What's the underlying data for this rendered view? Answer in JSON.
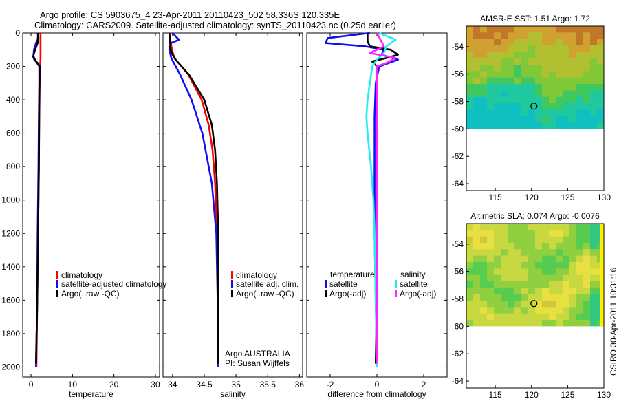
{
  "header": {
    "line1": "Argo profile: CS 5903675_4 23-Apr-2011 20110423_502 58.336S 120.335E",
    "line2": "Climatology: CARS2009. Satellite-adjusted climatology: synTS_20110423.nc (0.25d earlier)"
  },
  "footer": {
    "institution": "Argo AUSTRALIA",
    "pi": "PI: Susan Wijffels",
    "stamp": "CSIRO 30-Apr-2011 10:31:16"
  },
  "colors": {
    "red": "#ff0000",
    "blue": "#1010ee",
    "black": "#000000",
    "cyan": "#22eeee",
    "magenta": "#ff22ff"
  },
  "chart_data": [
    {
      "type": "line",
      "id": "temperature",
      "xlabel": "temperature",
      "ylabel": "",
      "xlim": [
        -2,
        31
      ],
      "ylim": [
        2060,
        0
      ],
      "xticks": [
        0,
        10,
        20,
        30
      ],
      "yticks": [
        0,
        200,
        400,
        600,
        800,
        1000,
        1200,
        1400,
        1600,
        1800,
        2000
      ],
      "legend": {
        "position": "lower-left",
        "entries": [
          "climatology",
          "satellite-adjusted climatology",
          "Argo(..raw -QC)"
        ]
      },
      "series": [
        {
          "name": "climatology",
          "color": "red",
          "depth": [
            0,
            50,
            100,
            150,
            200,
            300,
            500,
            800,
            1200,
            1600,
            2000
          ],
          "values": [
            2.3,
            2.3,
            2.3,
            2.3,
            2.2,
            2.1,
            2.0,
            1.9,
            1.7,
            1.5,
            1.3
          ]
        },
        {
          "name": "satellite-adjusted climatology",
          "color": "blue",
          "depth": [
            0,
            30,
            60,
            100,
            140,
            170,
            200,
            300,
            500,
            800,
            1200,
            1600,
            2000
          ],
          "values": [
            1.6,
            1.8,
            1.2,
            0.7,
            0.6,
            1.2,
            2.0,
            2.0,
            1.9,
            1.8,
            1.6,
            1.5,
            1.2
          ]
        },
        {
          "name": "Argo(..raw -QC)",
          "color": "black",
          "depth": [
            0,
            60,
            100,
            140,
            160,
            180,
            200,
            400,
            800,
            1200,
            1600,
            1980
          ],
          "values": [
            1.7,
            1.6,
            1.0,
            0.5,
            0.8,
            1.6,
            2.1,
            2.0,
            1.9,
            1.7,
            1.5,
            1.2
          ]
        }
      ]
    },
    {
      "type": "line",
      "id": "salinity",
      "xlabel": "salinity",
      "ylabel": "",
      "xlim": [
        33.85,
        36.05
      ],
      "ylim": [
        2060,
        0
      ],
      "xticks": [
        34,
        34.5,
        35,
        35.5,
        36
      ],
      "yticks": [
        0,
        200,
        400,
        600,
        800,
        1000,
        1200,
        1400,
        1600,
        1800,
        2000
      ],
      "legend": {
        "position": "lower-right",
        "entries": [
          "climatology",
          "satellite adj. clim.",
          "Argo(..raw -QC)"
        ]
      },
      "series": [
        {
          "name": "climatology",
          "color": "red",
          "depth": [
            0,
            100,
            150,
            250,
            400,
            550,
            700,
            900,
            1200,
            1600,
            2000
          ],
          "values": [
            33.95,
            33.99,
            34.03,
            34.25,
            34.46,
            34.57,
            34.63,
            34.67,
            34.7,
            34.72,
            34.72
          ]
        },
        {
          "name": "satellite adj. clim.",
          "color": "blue",
          "depth": [
            0,
            40,
            60,
            80,
            100,
            150,
            250,
            400,
            600,
            900,
            1200,
            1600,
            2000
          ],
          "values": [
            34.0,
            34.1,
            33.98,
            33.95,
            33.95,
            33.98,
            34.12,
            34.3,
            34.47,
            34.62,
            34.69,
            34.71,
            34.71
          ]
        },
        {
          "name": "Argo(..raw -QC)",
          "color": "black",
          "depth": [
            0,
            100,
            130,
            160,
            250,
            400,
            550,
            700,
            900,
            1200,
            1600,
            1980
          ],
          "values": [
            33.95,
            33.97,
            34.0,
            34.05,
            34.26,
            34.5,
            34.62,
            34.67,
            34.7,
            34.72,
            34.72,
            34.72
          ]
        }
      ]
    },
    {
      "type": "line",
      "id": "difference",
      "xlabel": "difference from climatology",
      "ylabel": "",
      "xlim": [
        -3,
        3
      ],
      "ylim": [
        2060,
        0
      ],
      "xticks": [
        -2,
        0,
        2
      ],
      "yticks": [
        0,
        200,
        400,
        600,
        800,
        1000,
        1200,
        1400,
        1600,
        1800,
        2000
      ],
      "legend": {
        "position": "lower-center",
        "groups": [
          "temperature",
          "salinity"
        ],
        "entries": [
          "satellite",
          "Argo(-adj)",
          "satellite",
          "Argo(-adj)"
        ]
      },
      "series": [
        {
          "name": "temperature satellite",
          "color": "blue",
          "depth": [
            0,
            30,
            60,
            80,
            100,
            130,
            160,
            200,
            300,
            500,
            800,
            1200,
            1600,
            2000
          ],
          "values": [
            -0.3,
            -2.1,
            -2.2,
            -0.5,
            0.3,
            0.2,
            0.9,
            0.1,
            -0.05,
            -0.1,
            -0.1,
            -0.1,
            -0.05,
            0.0
          ]
        },
        {
          "name": "temperature Argo(-adj)",
          "color": "black",
          "depth": [
            0,
            50,
            80,
            100,
            130,
            150,
            170,
            200,
            400,
            1000,
            1600,
            1980
          ],
          "values": [
            -0.4,
            -0.4,
            -0.3,
            0.6,
            0.9,
            0.4,
            -0.2,
            0.0,
            0.0,
            0.0,
            0.0,
            -0.05
          ]
        },
        {
          "name": "salinity satellite",
          "color": "cyan",
          "depth": [
            0,
            40,
            80,
            120,
            160,
            200,
            300,
            400,
            500,
            600,
            700,
            800,
            1000,
            1200,
            1600,
            2000
          ],
          "values": [
            0.1,
            0.8,
            0.4,
            0.3,
            0.0,
            -0.2,
            -0.3,
            -0.4,
            -0.45,
            -0.4,
            -0.33,
            -0.25,
            -0.15,
            -0.1,
            -0.05,
            0.0
          ]
        },
        {
          "name": "salinity Argo(-adj)",
          "color": "magenta",
          "depth": [
            0,
            80,
            120,
            150,
            180,
            200,
            400,
            1000,
            1600,
            1980
          ],
          "values": [
            0.0,
            0.3,
            -0.3,
            0.8,
            0.4,
            0.0,
            0.0,
            0.0,
            0.0,
            0.0
          ]
        }
      ]
    },
    {
      "type": "heatmap",
      "id": "sst-map",
      "title": "AMSR-E SST: 1.51  Argo: 1.72",
      "xlim": [
        111,
        130
      ],
      "ylim": [
        -64.5,
        -52.5
      ],
      "xticks": [
        115,
        120,
        125,
        130
      ],
      "yticks": [
        -54,
        -56,
        -58,
        -60,
        -62,
        -64
      ],
      "data_lat_range": [
        -60,
        -52.5
      ],
      "float_position": {
        "lon": 120.335,
        "lat": -58.336
      },
      "palette": [
        "#10c0c0",
        "#20c8a0",
        "#40c860",
        "#80c838",
        "#b0c030",
        "#d0a030",
        "#c07828"
      ]
    },
    {
      "type": "heatmap",
      "id": "sla-map",
      "title": "Altimetric SLA: 0.074  Argo: -0.0076",
      "xlim": [
        111,
        130
      ],
      "ylim": [
        -64.5,
        -52.5
      ],
      "xticks": [
        115,
        120,
        125,
        130
      ],
      "yticks": [
        -54,
        -56,
        -58,
        -60,
        -62,
        -64
      ],
      "data_lat_range": [
        -60,
        -52.5
      ],
      "float_position": {
        "lon": 120.335,
        "lat": -58.336
      },
      "palette": [
        "#30c880",
        "#58cc50",
        "#90d040",
        "#c8d840",
        "#e8e040",
        "#d0c838"
      ]
    }
  ]
}
